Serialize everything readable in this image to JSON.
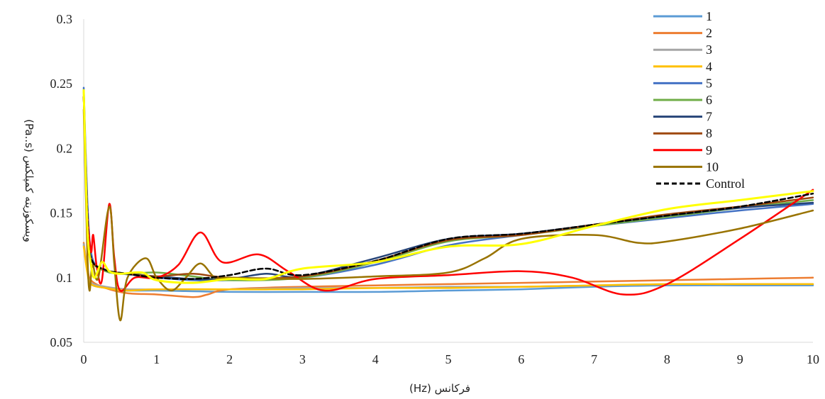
{
  "chart_data": {
    "type": "line",
    "title": "",
    "xlabel": "فرکانس (Hz)",
    "ylabel": "ویسکوزیته کمپلکس (Pa..s)",
    "xlim": [
      0,
      10
    ],
    "ylim": [
      0.05,
      0.3
    ],
    "x_ticks": [
      "0",
      "1",
      "2",
      "3",
      "4",
      "5",
      "6",
      "7",
      "8",
      "9",
      "10"
    ],
    "y_ticks": [
      "0.05",
      "0.1",
      "0.15",
      "0.2",
      "0.25",
      "0.3"
    ],
    "grid": false,
    "legend_position": "top-right",
    "series": [
      {
        "name": "1",
        "color": "#5b9bd5",
        "dash": false,
        "points": [
          [
            0,
            0.125
          ],
          [
            0.05,
            0.105
          ],
          [
            0.1,
            0.095
          ],
          [
            0.3,
            0.092
          ],
          [
            0.5,
            0.09
          ],
          [
            1,
            0.09
          ],
          [
            2,
            0.089
          ],
          [
            3,
            0.089
          ],
          [
            4,
            0.089
          ],
          [
            5,
            0.09
          ],
          [
            6,
            0.091
          ],
          [
            7,
            0.093
          ],
          [
            8,
            0.094
          ],
          [
            9,
            0.094
          ],
          [
            10,
            0.094
          ]
        ]
      },
      {
        "name": "2",
        "color": "#ed7d31",
        "dash": false,
        "points": [
          [
            0,
            0.127
          ],
          [
            0.05,
            0.108
          ],
          [
            0.1,
            0.098
          ],
          [
            0.3,
            0.092
          ],
          [
            0.6,
            0.088
          ],
          [
            1,
            0.087
          ],
          [
            1.5,
            0.085
          ],
          [
            1.7,
            0.087
          ],
          [
            2,
            0.091
          ],
          [
            3,
            0.093
          ],
          [
            4,
            0.094
          ],
          [
            5,
            0.095
          ],
          [
            6,
            0.096
          ],
          [
            7,
            0.097
          ],
          [
            8,
            0.098
          ],
          [
            9,
            0.099
          ],
          [
            10,
            0.1
          ]
        ]
      },
      {
        "name": "3",
        "color": "#a5a5a5",
        "dash": false,
        "points": [
          [
            0,
            0.126
          ],
          [
            0.05,
            0.105
          ],
          [
            0.1,
            0.096
          ],
          [
            0.3,
            0.093
          ],
          [
            0.6,
            0.091
          ],
          [
            1,
            0.091
          ],
          [
            2,
            0.091
          ],
          [
            3,
            0.092
          ],
          [
            4,
            0.092
          ],
          [
            5,
            0.093
          ],
          [
            6,
            0.093
          ],
          [
            7,
            0.094
          ],
          [
            8,
            0.095
          ],
          [
            9,
            0.095
          ],
          [
            10,
            0.095
          ]
        ]
      },
      {
        "name": "4",
        "color": "#ffc000",
        "dash": false,
        "points": [
          [
            0,
            0.124
          ],
          [
            0.05,
            0.104
          ],
          [
            0.1,
            0.095
          ],
          [
            0.3,
            0.092
          ],
          [
            0.6,
            0.09
          ],
          [
            1,
            0.091
          ],
          [
            2,
            0.091
          ],
          [
            3,
            0.091
          ],
          [
            4,
            0.092
          ],
          [
            5,
            0.092
          ],
          [
            6,
            0.093
          ],
          [
            7,
            0.094
          ],
          [
            8,
            0.095
          ],
          [
            9,
            0.095
          ],
          [
            10,
            0.095
          ]
        ]
      },
      {
        "name": "5",
        "color": "#4472c4",
        "dash": false,
        "points": [
          [
            0,
            0.247
          ],
          [
            0.05,
            0.16
          ],
          [
            0.1,
            0.12
          ],
          [
            0.2,
            0.108
          ],
          [
            0.4,
            0.104
          ],
          [
            0.7,
            0.102
          ],
          [
            1,
            0.1
          ],
          [
            1.5,
            0.098
          ],
          [
            2,
            0.098
          ],
          [
            3,
            0.1
          ],
          [
            4,
            0.11
          ],
          [
            5,
            0.125
          ],
          [
            6,
            0.133
          ],
          [
            7,
            0.14
          ],
          [
            8,
            0.146
          ],
          [
            9,
            0.152
          ],
          [
            10,
            0.157
          ]
        ]
      },
      {
        "name": "6",
        "color": "#70ad47",
        "dash": false,
        "points": [
          [
            0,
            0.24
          ],
          [
            0.05,
            0.15
          ],
          [
            0.1,
            0.115
          ],
          [
            0.3,
            0.105
          ],
          [
            0.6,
            0.103
          ],
          [
            1,
            0.104
          ],
          [
            1.5,
            0.101
          ],
          [
            2,
            0.098
          ],
          [
            3,
            0.1
          ],
          [
            4,
            0.112
          ],
          [
            5,
            0.128
          ],
          [
            6,
            0.133
          ],
          [
            7,
            0.14
          ],
          [
            8,
            0.147
          ],
          [
            9,
            0.154
          ],
          [
            10,
            0.16
          ]
        ]
      },
      {
        "name": "7",
        "color": "#264478",
        "dash": false,
        "points": [
          [
            0,
            0.245
          ],
          [
            0.05,
            0.15
          ],
          [
            0.1,
            0.115
          ],
          [
            0.3,
            0.106
          ],
          [
            0.6,
            0.103
          ],
          [
            1,
            0.101
          ],
          [
            1.5,
            0.099
          ],
          [
            2,
            0.099
          ],
          [
            2.5,
            0.103
          ],
          [
            3,
            0.101
          ],
          [
            4,
            0.115
          ],
          [
            5,
            0.13
          ],
          [
            6,
            0.134
          ],
          [
            7,
            0.141
          ],
          [
            8,
            0.148
          ],
          [
            9,
            0.154
          ],
          [
            10,
            0.158
          ]
        ]
      },
      {
        "name": "8",
        "color": "#9e480e",
        "dash": false,
        "points": [
          [
            0,
            0.24
          ],
          [
            0.05,
            0.15
          ],
          [
            0.1,
            0.115
          ],
          [
            0.3,
            0.106
          ],
          [
            0.6,
            0.103
          ],
          [
            1,
            0.101
          ],
          [
            1.5,
            0.103
          ],
          [
            2,
            0.1
          ],
          [
            3,
            0.101
          ],
          [
            4,
            0.113
          ],
          [
            5,
            0.129
          ],
          [
            6,
            0.133
          ],
          [
            7,
            0.141
          ],
          [
            8,
            0.149
          ],
          [
            9,
            0.155
          ],
          [
            10,
            0.162
          ]
        ]
      },
      {
        "name": "9",
        "color": "#ff0000",
        "dash": false,
        "points": [
          [
            0,
            0.24
          ],
          [
            0.02,
            0.2
          ],
          [
            0.05,
            0.15
          ],
          [
            0.1,
            0.12
          ],
          [
            0.13,
            0.133
          ],
          [
            0.18,
            0.108
          ],
          [
            0.25,
            0.098
          ],
          [
            0.35,
            0.157
          ],
          [
            0.42,
            0.115
          ],
          [
            0.5,
            0.09
          ],
          [
            0.7,
            0.1
          ],
          [
            1,
            0.1
          ],
          [
            1.3,
            0.11
          ],
          [
            1.6,
            0.135
          ],
          [
            1.9,
            0.112
          ],
          [
            2.4,
            0.118
          ],
          [
            2.8,
            0.105
          ],
          [
            3.3,
            0.09
          ],
          [
            4,
            0.099
          ],
          [
            5,
            0.102
          ],
          [
            6,
            0.105
          ],
          [
            6.7,
            0.1
          ],
          [
            7.4,
            0.087
          ],
          [
            8,
            0.095
          ],
          [
            9,
            0.13
          ],
          [
            10,
            0.168
          ]
        ]
      },
      {
        "name": "10",
        "color": "#997300",
        "dash": false,
        "points": [
          [
            0,
            0.23
          ],
          [
            0.05,
            0.12
          ],
          [
            0.08,
            0.09
          ],
          [
            0.12,
            0.11
          ],
          [
            0.2,
            0.1
          ],
          [
            0.35,
            0.155
          ],
          [
            0.42,
            0.11
          ],
          [
            0.5,
            0.067
          ],
          [
            0.6,
            0.1
          ],
          [
            0.85,
            0.115
          ],
          [
            1,
            0.1
          ],
          [
            1.2,
            0.09
          ],
          [
            1.4,
            0.1
          ],
          [
            1.6,
            0.111
          ],
          [
            1.8,
            0.1
          ],
          [
            2,
            0.1
          ],
          [
            3,
            0.099
          ],
          [
            4,
            0.101
          ],
          [
            5,
            0.104
          ],
          [
            5.5,
            0.115
          ],
          [
            6,
            0.13
          ],
          [
            7,
            0.133
          ],
          [
            7.6,
            0.127
          ],
          [
            8,
            0.128
          ],
          [
            9,
            0.138
          ],
          [
            10,
            0.152
          ]
        ]
      },
      {
        "name": "Control",
        "color": "#000000",
        "dash": true,
        "points": [
          [
            0,
            0.24
          ],
          [
            0.05,
            0.15
          ],
          [
            0.1,
            0.115
          ],
          [
            0.3,
            0.106
          ],
          [
            0.6,
            0.103
          ],
          [
            1,
            0.1
          ],
          [
            1.5,
            0.099
          ],
          [
            2,
            0.102
          ],
          [
            2.5,
            0.107
          ],
          [
            3,
            0.102
          ],
          [
            4,
            0.113
          ],
          [
            5,
            0.13
          ],
          [
            6,
            0.134
          ],
          [
            7,
            0.141
          ],
          [
            8,
            0.148
          ],
          [
            9,
            0.155
          ],
          [
            10,
            0.165
          ]
        ]
      },
      {
        "name": "",
        "color": "#ffff00",
        "dash": false,
        "width": 3,
        "points": [
          [
            0,
            0.245
          ],
          [
            0.05,
            0.14
          ],
          [
            0.1,
            0.11
          ],
          [
            0.15,
            0.1
          ],
          [
            0.25,
            0.112
          ],
          [
            0.35,
            0.105
          ],
          [
            0.5,
            0.103
          ],
          [
            0.8,
            0.104
          ],
          [
            1,
            0.098
          ],
          [
            1.5,
            0.096
          ],
          [
            2,
            0.099
          ],
          [
            2.5,
            0.099
          ],
          [
            3,
            0.107
          ],
          [
            4,
            0.112
          ],
          [
            5,
            0.124
          ],
          [
            6,
            0.126
          ],
          [
            7,
            0.14
          ],
          [
            8,
            0.153
          ],
          [
            9,
            0.16
          ],
          [
            10,
            0.167
          ]
        ]
      }
    ]
  }
}
